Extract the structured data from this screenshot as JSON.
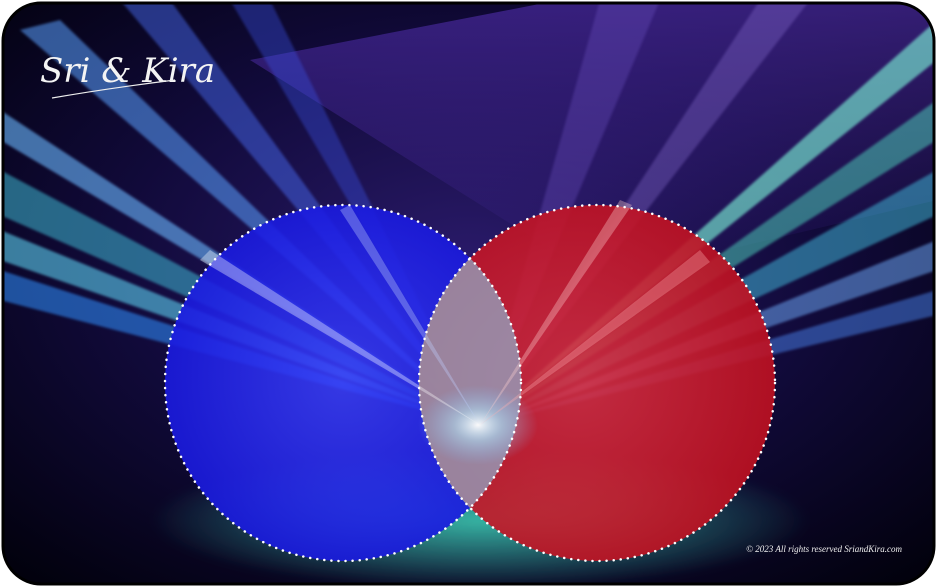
{
  "logo": "Sri & Kira",
  "copyright": "© 2023 All rights reserved SriandKira.com"
}
